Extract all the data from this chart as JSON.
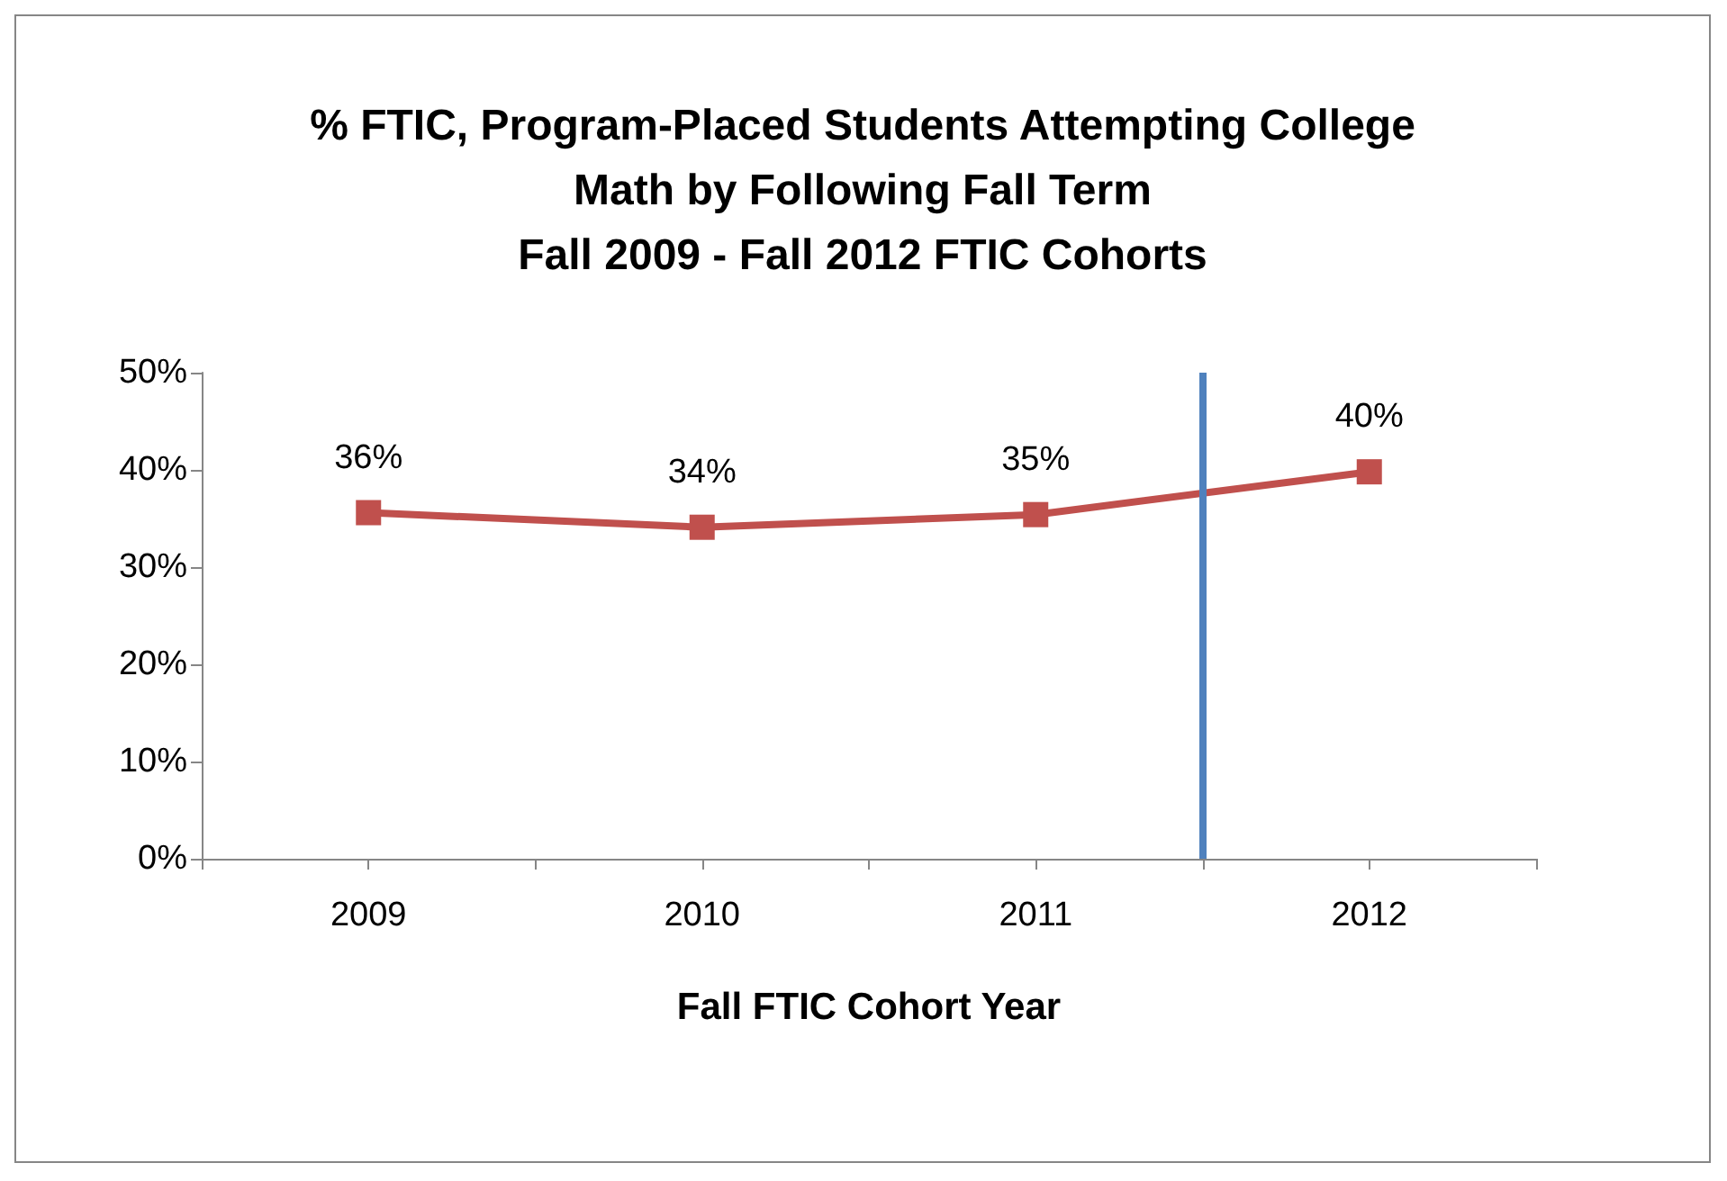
{
  "chart_data": {
    "type": "line",
    "title": "% FTIC, Program-Placed Students Attempting College\nMath by Following Fall Term\nFall 2009 - Fall 2012 FTIC Cohorts",
    "xlabel": "Fall FTIC Cohort Year",
    "x": [
      2009,
      2010,
      2011,
      2012
    ],
    "xlim": [
      2008.5,
      2012.5
    ],
    "xticks": [
      {
        "value": 2008.5,
        "label": null
      },
      {
        "value": 2009,
        "label": "2009"
      },
      {
        "value": 2009.5,
        "label": null
      },
      {
        "value": 2010,
        "label": "2010"
      },
      {
        "value": 2010.5,
        "label": null
      },
      {
        "value": 2011,
        "label": "2011"
      },
      {
        "value": 2011.5,
        "label": null
      },
      {
        "value": 2012,
        "label": "2012"
      },
      {
        "value": 2012.5,
        "label": null
      }
    ],
    "series": [
      {
        "color": "#c0504d",
        "values": [
          35.6,
          34.1,
          35.4,
          39.8
        ],
        "value_labels": [
          "36%",
          "34%",
          "35%",
          "40%"
        ]
      }
    ],
    "ylim": [
      0,
      50
    ],
    "yticks": [
      {
        "value": 0,
        "label": "0%"
      },
      {
        "value": 10,
        "label": "10%"
      },
      {
        "value": 20,
        "label": "20%"
      },
      {
        "value": 30,
        "label": "30%"
      },
      {
        "value": 40,
        "label": "40%"
      },
      {
        "value": 50,
        "label": "50%"
      }
    ],
    "ref_lines": [
      {
        "axis": "x",
        "value": 2011.5,
        "color": "#4f81bd"
      }
    ],
    "marker": "square",
    "grid": false
  }
}
